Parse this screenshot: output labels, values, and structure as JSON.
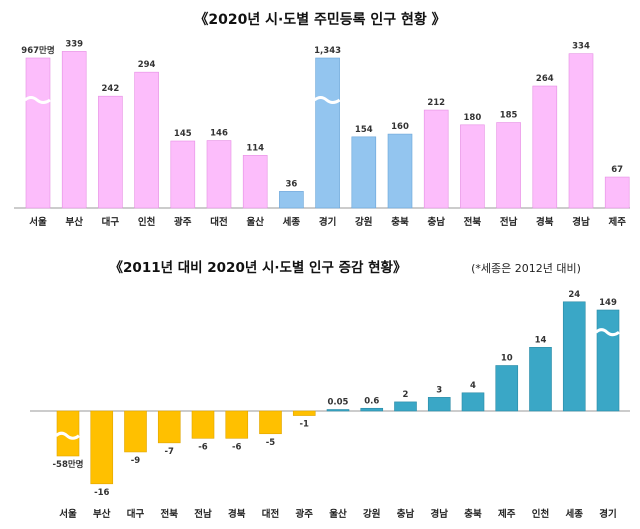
{
  "colors": {
    "pink": "#fcbdfb",
    "pink_stroke": "#e58fe3",
    "blue": "#93c5ef",
    "blue_stroke": "#6aa4d8",
    "orange": "#ffc000",
    "orange_stroke": "#e0a500",
    "teal": "#3aa7c6",
    "teal_stroke": "#2a8aa6"
  },
  "chart_data": [
    {
      "type": "bar",
      "title": "《2020년 시·도별 주민등록 인구 현황 》",
      "categories": [
        "서울",
        "부산",
        "대구",
        "인천",
        "광주",
        "대전",
        "울산",
        "세종",
        "경기",
        "강원",
        "충북",
        "충남",
        "전북",
        "전남",
        "경북",
        "경남",
        "제주"
      ],
      "values": [
        967,
        339,
        242,
        294,
        145,
        146,
        114,
        36,
        1343,
        154,
        160,
        212,
        180,
        185,
        264,
        334,
        67
      ],
      "data_labels": [
        "967만명",
        "339",
        "242",
        "294",
        "145",
        "146",
        "114",
        "36",
        "1,343",
        "154",
        "160",
        "212",
        "180",
        "185",
        "264",
        "334",
        "67"
      ],
      "unit": "만명",
      "highlighted": [
        "세종",
        "경기",
        "강원",
        "충북"
      ],
      "axis_break": [
        "서울",
        "경기"
      ]
    },
    {
      "type": "bar",
      "title": "《2011년 대비 2020년 시·도별 인구 증감 현황》",
      "note": "(*세종은 2012년 대비)",
      "categories": [
        "서울",
        "부산",
        "대구",
        "전북",
        "전남",
        "경북",
        "대전",
        "광주",
        "울산",
        "강원",
        "충남",
        "경남",
        "충북",
        "제주",
        "인천",
        "세종",
        "경기"
      ],
      "values": [
        -58,
        -16,
        -9,
        -7,
        -6,
        -6,
        -5,
        -1,
        0.05,
        0.6,
        2,
        3,
        4,
        10,
        14,
        24,
        149
      ],
      "data_labels": [
        "-58만명",
        "-16",
        "-9",
        "-7",
        "-6",
        "-6",
        "-5",
        "-1",
        "0.05",
        "0.6",
        "2",
        "3",
        "4",
        "10",
        "14",
        "24",
        "149"
      ],
      "unit": "만명",
      "axis_break": [
        "서울",
        "경기"
      ]
    }
  ]
}
